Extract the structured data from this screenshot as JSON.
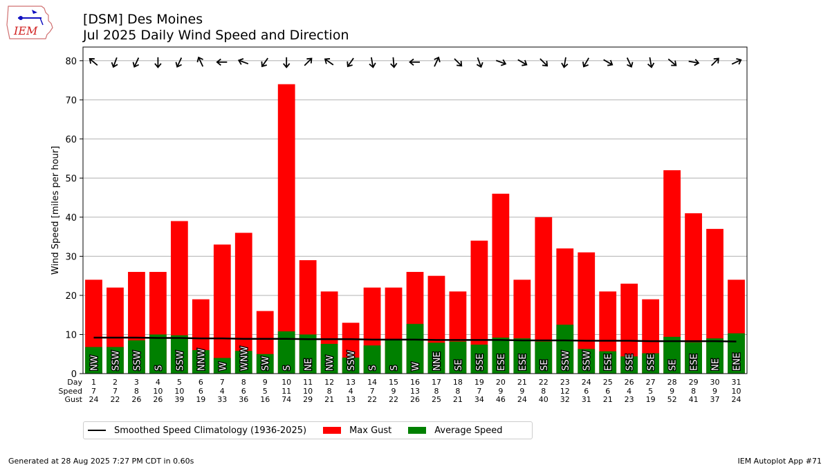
{
  "header": {
    "title_line1": "[DSM] Des Moines",
    "title_line2": "Jul 2025 Daily Wind Speed and Direction"
  },
  "logo": {
    "text": "IEM"
  },
  "footer": {
    "left": "Generated at 28 Aug 2025 7:27 PM CDT in 0.60s",
    "right": "IEM Autoplot App #71"
  },
  "colors": {
    "gust": "#ff0000",
    "avg_speed": "#008000",
    "climatology": "#000000",
    "grid": "#b0b0b0"
  },
  "legend": {
    "climatology_label": "Smoothed Speed Climatology (1936-2025)",
    "gust_label": "Max Gust",
    "avg_label": "Average Speed"
  },
  "chart_data": {
    "type": "bar",
    "title": "[DSM] Des Moines\nJul 2025 Daily Wind Speed and Direction",
    "ylabel": "Wind Speed [miles per hour]",
    "ylim": [
      0,
      83.5
    ],
    "yticks": [
      0,
      10,
      20,
      30,
      40,
      50,
      60,
      70,
      80
    ],
    "grid": "horizontal",
    "legend_placement": "bottom",
    "row_labels": [
      "Day",
      "Speed",
      "Gust"
    ],
    "days": [
      1,
      2,
      3,
      4,
      5,
      6,
      7,
      8,
      9,
      10,
      11,
      12,
      13,
      14,
      15,
      16,
      17,
      18,
      19,
      20,
      21,
      22,
      23,
      24,
      25,
      26,
      27,
      28,
      29,
      30,
      31
    ],
    "speed_labels": [
      7,
      7,
      8,
      10,
      10,
      6,
      4,
      6,
      5,
      11,
      10,
      8,
      4,
      7,
      9,
      13,
      8,
      8,
      7,
      9,
      9,
      8,
      12,
      6,
      6,
      4,
      5,
      9,
      8,
      9,
      10
    ],
    "avg_speed": [
      6.8,
      6.8,
      8.5,
      10.0,
      9.8,
      6.0,
      4.0,
      5.8,
      5.0,
      10.8,
      10.0,
      7.6,
      4.1,
      7.2,
      8.8,
      12.7,
      7.9,
      8.2,
      7.4,
      9.2,
      9.0,
      8.2,
      12.5,
      6.3,
      5.7,
      4.4,
      5.2,
      9.4,
      8.0,
      9.0,
      10.3
    ],
    "series": [
      {
        "name": "Max Gust",
        "values": [
          24,
          22,
          26,
          26,
          39,
          19,
          33,
          36,
          16,
          74,
          29,
          21,
          13,
          22,
          22,
          26,
          25,
          21,
          34,
          46,
          24,
          40,
          32,
          31,
          21,
          23,
          19,
          52,
          41,
          37,
          24
        ]
      },
      {
        "name": "Average Speed",
        "values": [
          6.8,
          6.8,
          8.5,
          10.0,
          9.8,
          6.0,
          4.0,
          5.8,
          5.0,
          10.8,
          10.0,
          7.6,
          4.1,
          7.2,
          8.8,
          12.7,
          7.9,
          8.2,
          7.4,
          9.2,
          9.0,
          8.2,
          12.5,
          6.3,
          5.7,
          4.4,
          5.2,
          9.4,
          8.0,
          9.0,
          10.3
        ]
      },
      {
        "name": "Smoothed Speed Climatology (1936-2025)",
        "values": [
          9.2,
          9.2,
          9.2,
          9.1,
          9.1,
          9.0,
          9.0,
          8.9,
          8.9,
          8.9,
          8.8,
          8.8,
          8.8,
          8.7,
          8.7,
          8.7,
          8.6,
          8.6,
          8.6,
          8.6,
          8.5,
          8.5,
          8.5,
          8.4,
          8.4,
          8.4,
          8.3,
          8.3,
          8.3,
          8.3,
          8.2
        ]
      }
    ],
    "direction_labels": [
      "NW",
      "SSW",
      "SSW",
      "S",
      "SSW",
      "NNW",
      "W",
      "WNW",
      "SW",
      "S",
      "NE",
      "NW",
      "SSW",
      "S",
      "S",
      "W",
      "NNE",
      "SE",
      "SSE",
      "ESE",
      "ESE",
      "SE",
      "SSW",
      "SSW",
      "ESE",
      "SSE",
      "SSE",
      "SE",
      "ESE",
      "NE",
      "ENE"
    ],
    "arrow_direction_deg": [
      310,
      200,
      205,
      180,
      205,
      335,
      270,
      290,
      215,
      180,
      45,
      305,
      215,
      170,
      175,
      270,
      25,
      135,
      160,
      110,
      120,
      135,
      190,
      210,
      120,
      155,
      170,
      130,
      100,
      45,
      65
    ],
    "arrow_y": 80
  }
}
